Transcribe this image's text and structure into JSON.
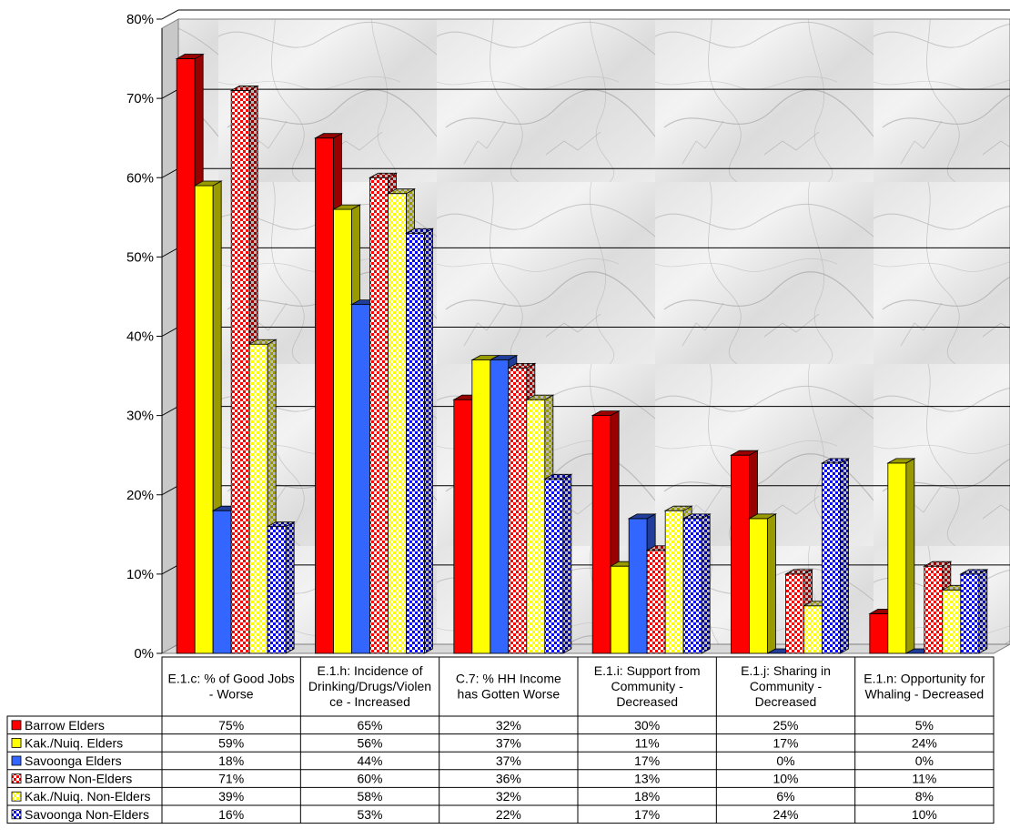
{
  "chart_data": {
    "type": "bar",
    "title": "",
    "xlabel": "",
    "ylabel": "",
    "ylim": [
      0,
      0.8
    ],
    "y_ticks": [
      "0%",
      "10%",
      "20%",
      "30%",
      "40%",
      "50%",
      "60%",
      "70%",
      "80%"
    ],
    "grid": true,
    "legend": "data-table-left",
    "background": "marble",
    "categories": [
      [
        "E.1.c: % of Good Jobs",
        "- Worse"
      ],
      [
        "E.1.h: Incidence of",
        "Drinking/Drugs/Violen",
        "ce - Increased"
      ],
      [
        "C.7: % HH Income",
        "has Gotten Worse"
      ],
      [
        "E.1.i: Support from",
        "Community -",
        "Decreased"
      ],
      [
        "E.1.j: Sharing in",
        "Community -",
        "Decreased"
      ],
      [
        "E.1.n: Opportunity for",
        "Whaling - Decreased"
      ]
    ],
    "series": [
      {
        "name": "Barrow Elders",
        "color": "#ff0000",
        "pattern": "solid",
        "values": [
          0.75,
          0.65,
          0.32,
          0.3,
          0.25,
          0.05
        ],
        "labels": [
          "75%",
          "65%",
          "32%",
          "30%",
          "25%",
          "5%"
        ]
      },
      {
        "name": "Kak./Nuiq. Elders",
        "color": "#ffff00",
        "pattern": "solid",
        "values": [
          0.59,
          0.56,
          0.37,
          0.11,
          0.17,
          0.24
        ],
        "labels": [
          "59%",
          "56%",
          "37%",
          "11%",
          "17%",
          "24%"
        ]
      },
      {
        "name": "Savoonga Elders",
        "color": "#3366ff",
        "pattern": "solid",
        "values": [
          0.18,
          0.44,
          0.37,
          0.17,
          0.0,
          0.0
        ],
        "labels": [
          "18%",
          "44%",
          "37%",
          "17%",
          "0%",
          "0%"
        ]
      },
      {
        "name": "Barrow Non-Elders",
        "color": "#ff0000",
        "pattern": "checker",
        "values": [
          0.71,
          0.6,
          0.36,
          0.13,
          0.1,
          0.11
        ],
        "labels": [
          "71%",
          "60%",
          "36%",
          "13%",
          "10%",
          "11%"
        ]
      },
      {
        "name": "Kak./Nuiq. Non-Elders",
        "color": "#ffff00",
        "pattern": "checker",
        "values": [
          0.39,
          0.58,
          0.32,
          0.18,
          0.06,
          0.08
        ],
        "labels": [
          "39%",
          "58%",
          "32%",
          "18%",
          "6%",
          "8%"
        ]
      },
      {
        "name": "Savoonga Non-Elders",
        "color": "#0000ff",
        "pattern": "checker",
        "values": [
          0.16,
          0.53,
          0.22,
          0.17,
          0.24,
          0.1
        ],
        "labels": [
          "16%",
          "53%",
          "22%",
          "17%",
          "24%",
          "10%"
        ]
      }
    ]
  }
}
